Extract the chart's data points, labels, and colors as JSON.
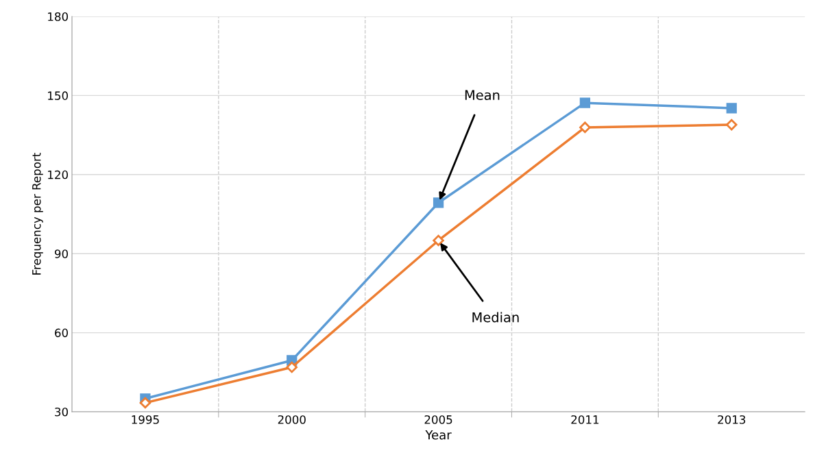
{
  "chart_data": {
    "type": "line",
    "xlabel": "Year",
    "ylabel": "Frequency per Report",
    "categories": [
      "1995",
      "2000",
      "2005",
      "2011",
      "2013"
    ],
    "series": [
      {
        "color": "#5b9bd5",
        "marker": "square",
        "values": [
          35,
          49.5,
          109.3,
          147.2,
          145.2
        ]
      },
      {
        "color": "#ed7d31",
        "marker": "diamond",
        "values": [
          33.4,
          46.9,
          95,
          137.9,
          138.9
        ]
      }
    ],
    "annotations": [
      {
        "text": "Mean",
        "x": "2005",
        "y": 109.3
      },
      {
        "text": "Median",
        "x": "2005",
        "y": 95
      }
    ],
    "ylim": [
      30,
      180
    ],
    "yticks": [
      30,
      60,
      90,
      120,
      150,
      180
    ],
    "grid": true
  }
}
